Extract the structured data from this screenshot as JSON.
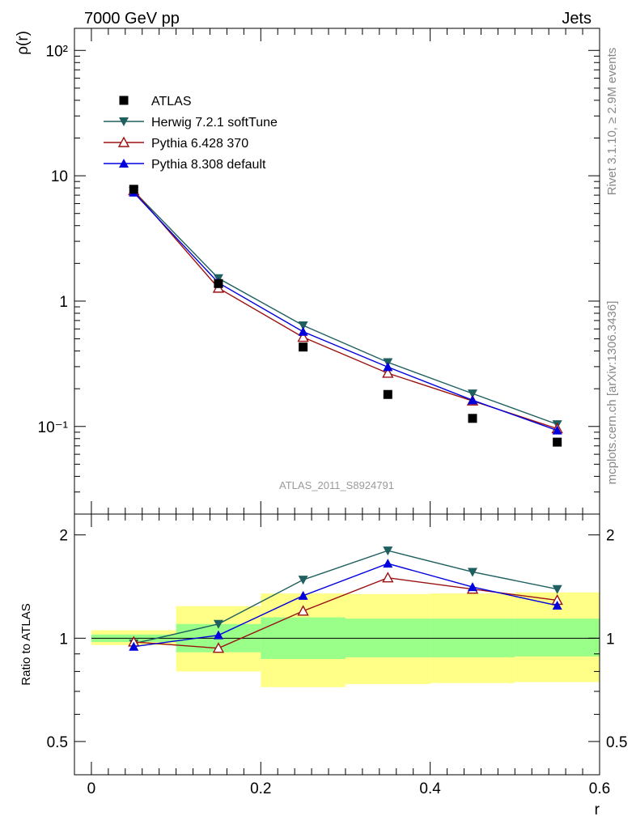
{
  "header": {
    "left": "7000 GeV pp",
    "right": "Jets"
  },
  "side_labels": {
    "top": "Rivet 3.1.10, ≥ 2.9M events",
    "bottom": "mcplots.cern.ch [arXiv:1306.3436]"
  },
  "watermark": "ATLAS_2011_S8924791",
  "chart_data": [
    {
      "type": "line",
      "panel": "main",
      "ylabel": "ρ(r)",
      "xlim": [
        -0.02,
        0.6
      ],
      "ylim": [
        0.02,
        150
      ],
      "yscale": "log",
      "ytick_labels": [
        "10⁻¹",
        "1",
        "10",
        "10²"
      ],
      "x": [
        0.05,
        0.15,
        0.25,
        0.35,
        0.45,
        0.55
      ],
      "legend_position": "top-left",
      "series": [
        {
          "name": "ATLAS",
          "marker": "square",
          "color": "#000000",
          "line": false,
          "values": [
            7.8,
            1.38,
            0.43,
            0.18,
            0.116,
            0.075
          ]
        },
        {
          "name": "Herwig 7.2.1 softTune",
          "marker": "triangle-down",
          "color": "#1f5f5f",
          "line": true,
          "values": [
            7.55,
            1.52,
            0.64,
            0.325,
            0.183,
            0.104
          ]
        },
        {
          "name": "Pythia 6.428 370",
          "marker": "triangle-up-open",
          "color": "#9b1111",
          "line": true,
          "values": [
            7.6,
            1.27,
            0.515,
            0.266,
            0.16,
            0.096
          ]
        },
        {
          "name": "Pythia 8.308 default",
          "marker": "triangle-up",
          "color": "#0000dd",
          "line": true,
          "values": [
            7.35,
            1.4,
            0.57,
            0.298,
            0.162,
            0.093
          ]
        }
      ]
    },
    {
      "type": "line",
      "panel": "ratio",
      "ylabel": "Ratio to ATLAS",
      "xlabel": "r",
      "xlim": [
        -0.02,
        0.6
      ],
      "ylim": [
        0.4,
        2.3
      ],
      "yscale": "log",
      "ytick_labels": [
        "0.5",
        "1",
        "2"
      ],
      "xtick_labels": [
        "0",
        "0.2",
        "0.4",
        "0.6"
      ],
      "reference_line": 1,
      "bands": {
        "edges": [
          0.0,
          0.1,
          0.2,
          0.3,
          0.4,
          0.5,
          0.6
        ],
        "green": [
          [
            0.975,
            1.025
          ],
          [
            0.91,
            1.1
          ],
          [
            0.87,
            1.15
          ],
          [
            0.88,
            1.14
          ],
          [
            0.88,
            1.14
          ],
          [
            0.885,
            1.14
          ]
        ],
        "yellow": [
          [
            0.955,
            1.055
          ],
          [
            0.8,
            1.24
          ],
          [
            0.72,
            1.35
          ],
          [
            0.735,
            1.345
          ],
          [
            0.74,
            1.35
          ],
          [
            0.745,
            1.36
          ]
        ]
      },
      "x": [
        0.05,
        0.15,
        0.25,
        0.35,
        0.45,
        0.55
      ],
      "series": [
        {
          "name": "Herwig 7.2.1 softTune",
          "marker": "triangle-down",
          "color": "#1f5f5f",
          "values": [
            0.965,
            1.1,
            1.48,
            1.8,
            1.56,
            1.39
          ]
        },
        {
          "name": "Pythia 6.428 370",
          "marker": "triangle-up-open",
          "color": "#9b1111",
          "values": [
            0.975,
            0.935,
            1.2,
            1.5,
            1.39,
            1.29
          ]
        },
        {
          "name": "Pythia 8.308 default",
          "marker": "triangle-up",
          "color": "#0000dd",
          "values": [
            0.945,
            1.02,
            1.33,
            1.65,
            1.41,
            1.245
          ]
        }
      ]
    }
  ]
}
